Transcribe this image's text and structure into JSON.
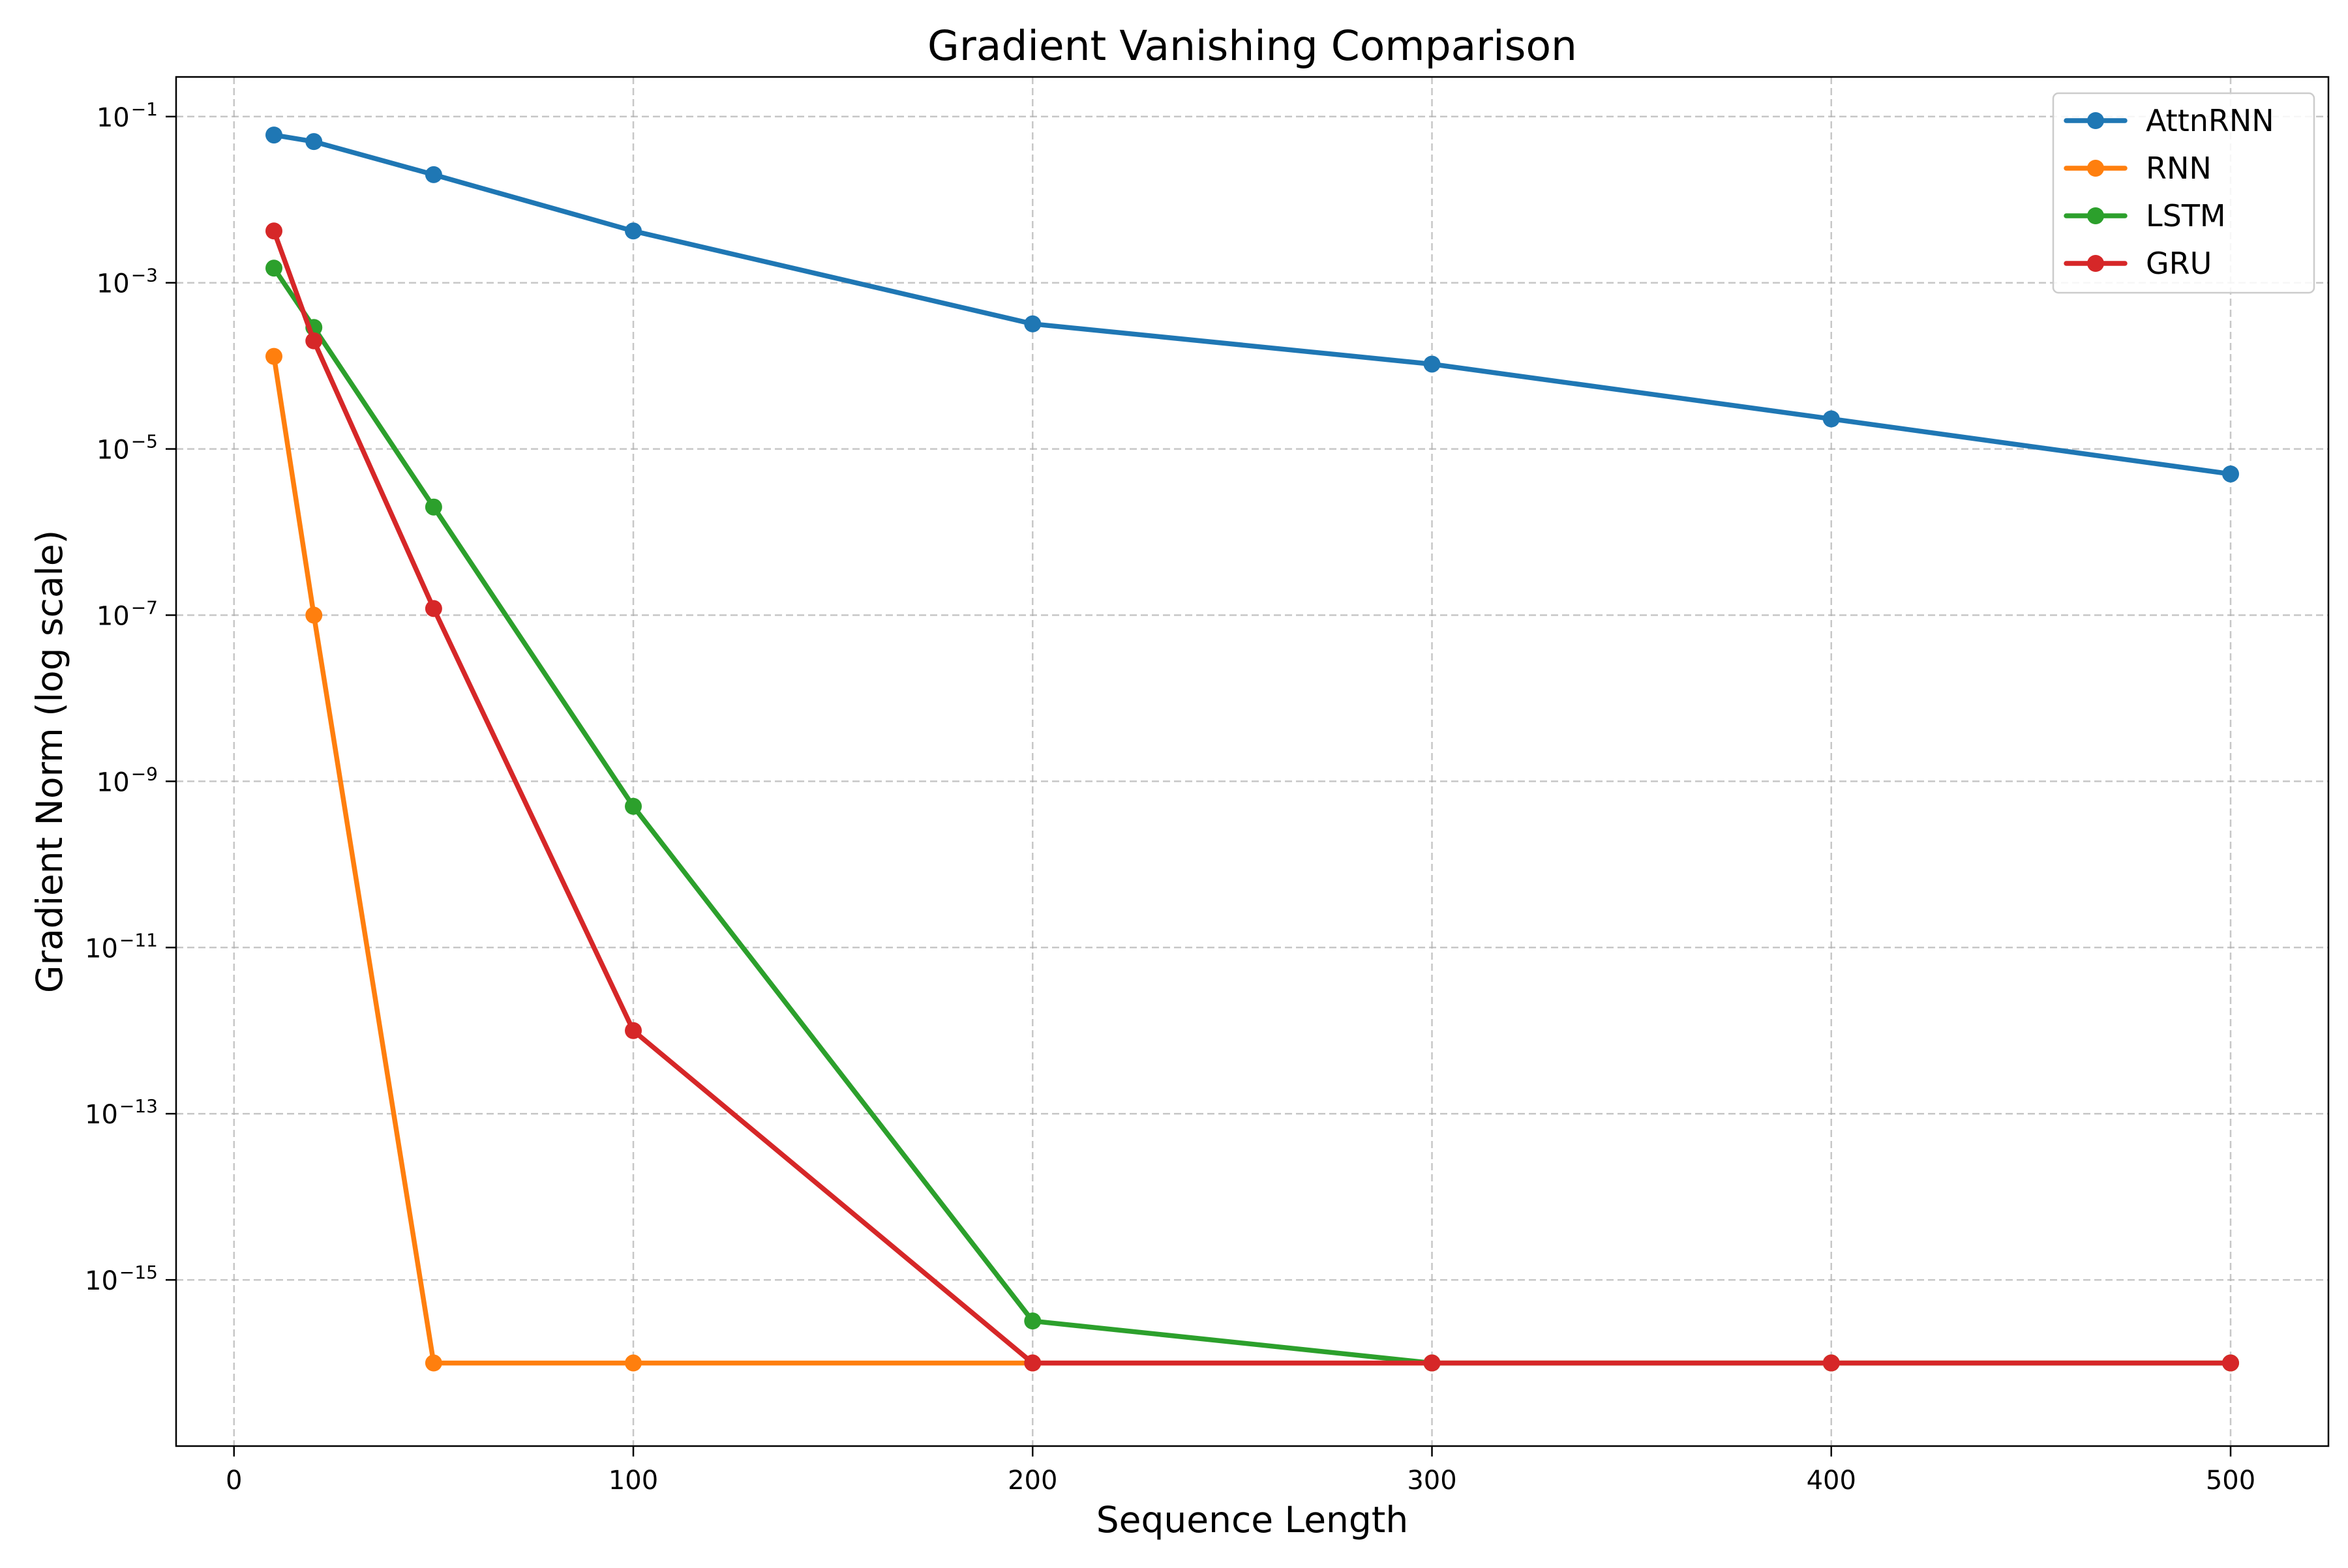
{
  "chart_data": {
    "type": "line",
    "title": "Gradient Vanishing Comparison",
    "xlabel": "Sequence Length",
    "ylabel": "Gradient Norm (log scale)",
    "xlim": [
      -14.5,
      524.5
    ],
    "ylim": [
      1e-17,
      0.3
    ],
    "yscale": "log",
    "grid": true,
    "legend_position": "top-right",
    "x_ticks": [
      0,
      100,
      200,
      300,
      400,
      500
    ],
    "y_ticks": [
      {
        "value": 0.1,
        "base": "10",
        "exp": "−1"
      },
      {
        "value": 0.001,
        "base": "10",
        "exp": "−3"
      },
      {
        "value": 1e-05,
        "base": "10",
        "exp": "−5"
      },
      {
        "value": 1e-07,
        "base": "10",
        "exp": "−7"
      },
      {
        "value": 1e-09,
        "base": "10",
        "exp": "−9"
      },
      {
        "value": 1e-11,
        "base": "10",
        "exp": "−11"
      },
      {
        "value": 1e-13,
        "base": "10",
        "exp": "−13"
      },
      {
        "value": 1e-15,
        "base": "10",
        "exp": "−15"
      }
    ],
    "series": [
      {
        "name": "AttnRNN",
        "color": "#1f77b4",
        "x": [
          10,
          20,
          50,
          100,
          200,
          300,
          400,
          500
        ],
        "y": [
          0.06,
          0.05,
          0.02,
          0.0042,
          0.00032,
          0.000105,
          2.3e-05,
          5e-06
        ]
      },
      {
        "name": "RNN",
        "color": "#ff7f0e",
        "x": [
          10,
          20,
          50,
          100,
          200,
          300,
          400,
          500
        ],
        "y": [
          0.00013,
          1e-07,
          1e-16,
          1e-16,
          1e-16,
          1e-16,
          1e-16,
          1e-16
        ]
      },
      {
        "name": "LSTM",
        "color": "#2ca02c",
        "x": [
          10,
          20,
          50,
          100,
          200,
          300,
          400,
          500
        ],
        "y": [
          0.0015,
          0.00029,
          2e-06,
          5e-10,
          3.2e-16,
          1e-16,
          1e-16,
          1e-16
        ]
      },
      {
        "name": "GRU",
        "color": "#d62728",
        "x": [
          10,
          20,
          50,
          100,
          200,
          300,
          400,
          500
        ],
        "y": [
          0.0042,
          0.0002,
          1.2e-07,
          1e-12,
          1e-16,
          1e-16,
          1e-16,
          1e-16
        ]
      }
    ]
  }
}
